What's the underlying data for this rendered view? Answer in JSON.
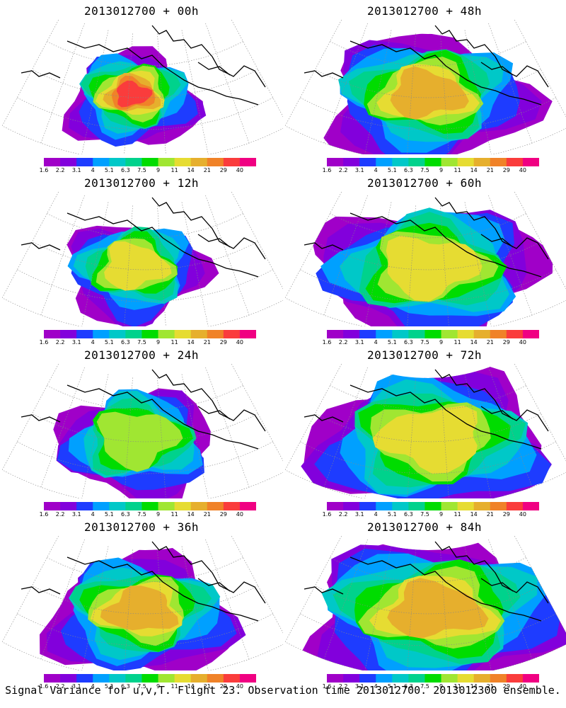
{
  "panels": [
    {
      "title": "2013012700 + 00h",
      "spread": 0.55,
      "intensity": 1.05
    },
    {
      "title": "2013012700 + 48h",
      "spread": 0.95,
      "intensity": 0.82
    },
    {
      "title": "2013012700 + 12h",
      "spread": 0.62,
      "intensity": 0.8
    },
    {
      "title": "2013012700 + 60h",
      "spread": 1.05,
      "intensity": 0.78
    },
    {
      "title": "2013012700 + 24h",
      "spread": 0.72,
      "intensity": 0.72
    },
    {
      "title": "2013012700 + 72h",
      "spread": 1.15,
      "intensity": 0.74
    },
    {
      "title": "2013012700 + 36h",
      "spread": 0.85,
      "intensity": 0.9
    },
    {
      "title": "2013012700 + 84h",
      "spread": 1.25,
      "intensity": 0.84
    }
  ],
  "colorbar": {
    "labels": [
      "1.6",
      "2.2",
      "3.1",
      "4",
      "5.1",
      "6.3",
      "7.5",
      "9",
      "11",
      "14",
      "21",
      "29",
      "40"
    ],
    "colors": [
      "#a000c8",
      "#8200dc",
      "#1e3cff",
      "#00a0ff",
      "#00c8c8",
      "#00d28c",
      "#00dc00",
      "#a0e632",
      "#e6dc32",
      "#e6af2d",
      "#f08228",
      "#fa3c3c",
      "#f00082"
    ]
  },
  "footer": "Signal Variance for u,v,T. Flight 23. Observation time 2013012700. 2013012300 ensemble."
}
